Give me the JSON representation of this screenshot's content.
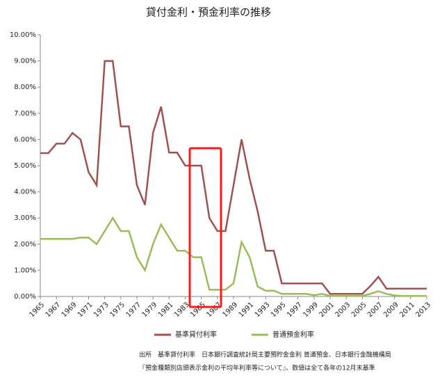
{
  "chart_data": {
    "type": "line",
    "title": "貸付金利・預金利率の推移",
    "x": [
      1965,
      1966,
      1967,
      1968,
      1969,
      1970,
      1971,
      1972,
      1973,
      1974,
      1975,
      1976,
      1977,
      1978,
      1979,
      1980,
      1981,
      1982,
      1983,
      1984,
      1985,
      1986,
      1987,
      1988,
      1989,
      1990,
      1991,
      1992,
      1993,
      1994,
      1995,
      1996,
      1997,
      1998,
      1999,
      2000,
      2001,
      2002,
      2003,
      2004,
      2005,
      2006,
      2007,
      2008,
      2009,
      2010,
      2011,
      2012,
      2013
    ],
    "xlim": [
      1965,
      2013
    ],
    "xticks": [
      1965,
      1967,
      1969,
      1971,
      1973,
      1975,
      1977,
      1979,
      1981,
      1983,
      1985,
      1987,
      1989,
      1991,
      1993,
      1995,
      1997,
      1999,
      2001,
      2003,
      2005,
      2007,
      2009,
      2011,
      2013
    ],
    "ylim": [
      0,
      10
    ],
    "yticks": [
      {
        "value": 0,
        "label": "0.00%"
      },
      {
        "value": 1,
        "label": "1.00%"
      },
      {
        "value": 2,
        "label": "2.00%"
      },
      {
        "value": 3,
        "label": "3.00%"
      },
      {
        "value": 4,
        "label": "4.00%"
      },
      {
        "value": 5,
        "label": "5.00%"
      },
      {
        "value": 6,
        "label": "6.00%"
      },
      {
        "value": 7,
        "label": "7.00%"
      },
      {
        "value": 8,
        "label": "8.00%"
      },
      {
        "value": 9,
        "label": "9.00%"
      },
      {
        "value": 10,
        "label": "10.00%"
      }
    ],
    "grid": false,
    "series": [
      {
        "name": "基準貸付利率",
        "color": "#a0504f",
        "values": [
          5.48,
          5.48,
          5.84,
          5.84,
          6.25,
          6.0,
          4.75,
          4.25,
          9.0,
          9.0,
          6.5,
          6.5,
          4.25,
          3.5,
          6.25,
          7.25,
          5.5,
          5.5,
          5.0,
          5.0,
          5.0,
          3.0,
          2.5,
          2.5,
          4.25,
          6.0,
          4.5,
          3.25,
          1.75,
          1.75,
          0.5,
          0.5,
          0.5,
          0.5,
          0.5,
          0.5,
          0.1,
          0.1,
          0.1,
          0.1,
          0.1,
          0.4,
          0.75,
          0.3,
          0.3,
          0.3,
          0.3,
          0.3,
          0.3
        ]
      },
      {
        "name": "普通預金利率",
        "color": "#9bbb59",
        "values": [
          2.2,
          2.2,
          2.2,
          2.2,
          2.2,
          2.25,
          2.25,
          2.0,
          2.5,
          3.0,
          2.5,
          2.5,
          1.5,
          1.0,
          2.0,
          2.75,
          2.25,
          1.75,
          1.75,
          1.5,
          1.5,
          0.26,
          0.26,
          0.26,
          0.5,
          2.08,
          1.5,
          0.38,
          0.22,
          0.22,
          0.1,
          0.1,
          0.1,
          0.1,
          0.05,
          0.1,
          0.02,
          0.02,
          0.02,
          0.02,
          0.02,
          0.1,
          0.2,
          0.1,
          0.04,
          0.02,
          0.02,
          0.02,
          0.02
        ]
      }
    ],
    "annotations": [
      "出所　基準貸付利率　日本銀行調査統計局主要預貯金金利 普通預金、日本銀行金融機構局",
      "『預金種類別店頭表示金利の平均年利率等について』、数値は全て各年の12月末基準"
    ]
  }
}
